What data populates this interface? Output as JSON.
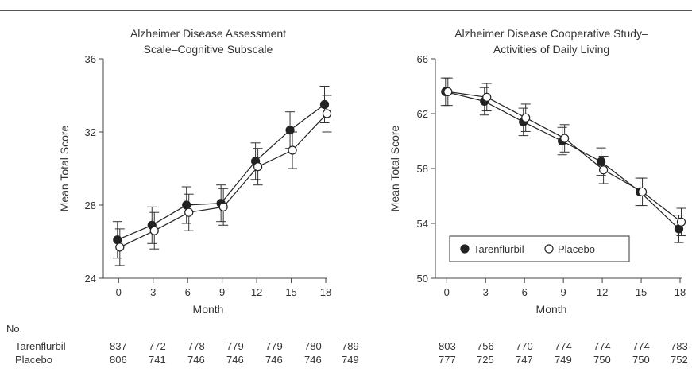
{
  "chart_data": [
    {
      "type": "line",
      "title": "Alzheimer Disease Assessment Scale–Cognitive Subscale",
      "title_lines": [
        "Alzheimer Disease Assessment",
        "Scale–Cognitive Subscale"
      ],
      "xlabel": "Month",
      "ylabel": "Mean Total Score",
      "x": [
        0,
        3,
        6,
        9,
        12,
        15,
        18
      ],
      "xticks": [
        "0",
        "3",
        "6",
        "9",
        "12",
        "15",
        "18"
      ],
      "yticks": [
        "24",
        "28",
        "32",
        "36"
      ],
      "ylim": [
        24,
        36
      ],
      "xlim": [
        -1,
        18.5
      ],
      "legend": false,
      "series": [
        {
          "name": "Tarenflurbil",
          "marker": "filled-circle",
          "values": [
            26.1,
            26.9,
            28.0,
            28.1,
            30.4,
            32.1,
            33.5
          ],
          "err": [
            1.0,
            1.0,
            1.0,
            1.0,
            1.0,
            1.0,
            1.0
          ]
        },
        {
          "name": "Placebo",
          "marker": "open-circle",
          "values": [
            25.7,
            26.6,
            27.6,
            27.9,
            30.1,
            31.0,
            33.0
          ],
          "err": [
            1.0,
            1.0,
            1.0,
            1.0,
            1.0,
            1.0,
            1.0
          ]
        }
      ]
    },
    {
      "type": "line",
      "title": "Alzheimer Disease Cooperative Study– Activities of Daily Living",
      "title_lines": [
        "Alzheimer Disease Cooperative Study–",
        "Activities of Daily Living"
      ],
      "xlabel": "Month",
      "ylabel": "Mean Total Score",
      "x": [
        0,
        3,
        6,
        9,
        12,
        15,
        18
      ],
      "xticks": [
        "0",
        "3",
        "6",
        "9",
        "12",
        "15",
        "18"
      ],
      "yticks": [
        "50",
        "54",
        "58",
        "62",
        "66"
      ],
      "ylim": [
        50,
        66
      ],
      "xlim": [
        -1,
        18.5
      ],
      "legend": true,
      "legend_placement": "bottom-left",
      "series": [
        {
          "name": "Tarenflurbil",
          "marker": "filled-circle",
          "values": [
            63.6,
            62.9,
            61.4,
            60.0,
            58.5,
            56.3,
            53.6
          ],
          "err": [
            1.0,
            1.0,
            1.0,
            1.0,
            1.0,
            1.0,
            1.0
          ]
        },
        {
          "name": "Placebo",
          "marker": "open-circle",
          "values": [
            63.6,
            63.2,
            61.7,
            60.2,
            57.9,
            56.3,
            54.1
          ],
          "err": [
            1.0,
            1.0,
            1.0,
            1.0,
            1.0,
            1.0,
            1.0
          ]
        }
      ]
    }
  ],
  "table": {
    "header": "No.",
    "rows": [
      {
        "label": "Tarenflurbil",
        "left": [
          "837",
          "772",
          "778",
          "779",
          "779",
          "780",
          "789"
        ],
        "right": [
          "803",
          "756",
          "770",
          "774",
          "774",
          "774",
          "783"
        ]
      },
      {
        "label": "Placebo",
        "left": [
          "806",
          "741",
          "746",
          "746",
          "746",
          "746",
          "749"
        ],
        "right": [
          "777",
          "725",
          "747",
          "749",
          "750",
          "750",
          "752"
        ]
      }
    ]
  }
}
